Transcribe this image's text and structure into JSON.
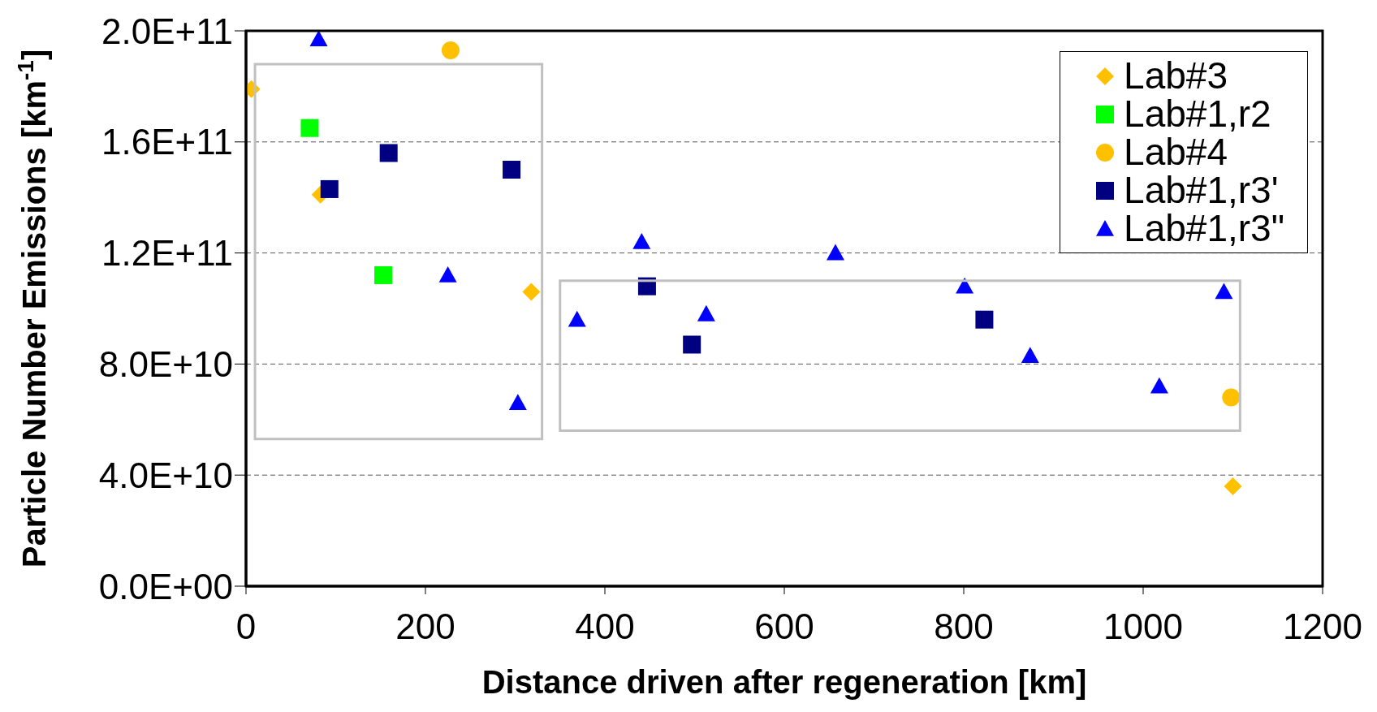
{
  "chart_data": {
    "type": "scatter",
    "xlabel": "Distance driven after regeneration [km]",
    "ylabel": "Particle Number Emissions [km$^{-1}$]",
    "xlim": [
      0,
      1200
    ],
    "xticks": [
      0,
      200,
      400,
      600,
      800,
      1000,
      1200
    ],
    "ylim": [
      0,
      200000000000
    ],
    "yticks": [
      {
        "value": 0,
        "label": "0.0E+00"
      },
      {
        "value": 40000000000,
        "label": "4.0E+10"
      },
      {
        "value": 80000000000,
        "label": "8.0E+10"
      },
      {
        "value": 120000000000,
        "label": "1.2E+11"
      },
      {
        "value": 160000000000,
        "label": "1.6E+11"
      },
      {
        "value": 200000000000,
        "label": "2.0E+11"
      }
    ],
    "grid": "y",
    "legend": "top right",
    "series": [
      {
        "name": "Lab#3",
        "color": "#ffc000",
        "marker": "diamond",
        "x": [
          6,
          83,
          318,
          1100
        ],
        "values": [
          179000000000,
          141000000000,
          106000000000,
          36000000000
        ]
      },
      {
        "name": "Lab#1,r2",
        "color": "#00ff00",
        "marker": "square",
        "x": [
          71,
          153
        ],
        "values": [
          165000000000,
          112000000000
        ]
      },
      {
        "name": "Lab#4",
        "color": "#ffc000",
        "marker": "circle",
        "x": [
          228,
          1098
        ],
        "values": [
          193000000000,
          68000000000
        ]
      },
      {
        "name": "Lab#1,r3'",
        "color": "#000080",
        "marker": "square",
        "x": [
          93,
          159,
          296,
          447,
          497,
          823
        ],
        "values": [
          143000000000,
          156000000000,
          150000000000,
          108000000000,
          87000000000,
          96000000000
        ]
      },
      {
        "name": "Lab#1,r3\"",
        "color": "#0000ff",
        "marker": "triangle",
        "x": [
          81,
          225,
          303,
          369,
          441,
          513,
          657,
          801,
          874,
          1018,
          1090
        ],
        "values": [
          197000000000,
          112000000000,
          66000000000,
          96000000000,
          124000000000,
          98000000000,
          120000000000,
          108000000000,
          83000000000,
          72000000000,
          106000000000
        ]
      }
    ]
  }
}
